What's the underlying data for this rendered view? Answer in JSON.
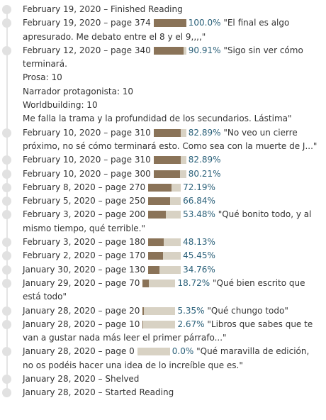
{
  "colors": {
    "bar_fill": "#8a7358",
    "bar_track": "#d8d2c4",
    "percent_text": "#2a6079",
    "timeline": "#e1e1e1"
  },
  "entries": [
    {
      "kind": "status",
      "text": "February 19, 2020 – Finished Reading"
    },
    {
      "kind": "progress",
      "date": "February 19, 2020",
      "page": "page 374",
      "percent": "100.0%",
      "value": 100.0,
      "quote": "\"El final es algo apresurado. Me debato entre el 8 y el 9,,,,\""
    },
    {
      "kind": "progress",
      "date": "February 12, 2020",
      "page": "page 340",
      "percent": "90.91%",
      "value": 90.91,
      "quote": "\"Sigo sin ver cómo terminará."
    },
    {
      "kind": "note",
      "text": "Prosa: 10"
    },
    {
      "kind": "note",
      "text": "Narrador protagonista: 10"
    },
    {
      "kind": "note",
      "text": "Worldbuilding: 10"
    },
    {
      "kind": "note",
      "text": "Me falla la trama y la profundidad de los secundarios. Lástima\""
    },
    {
      "kind": "progress",
      "date": "February 10, 2020",
      "page": "page 310",
      "percent": "82.89%",
      "value": 82.89,
      "quote": "\"No veo un cierre próximo, no sé cómo terminará esto. Como sea con la muerte de J...\""
    },
    {
      "kind": "progress",
      "date": "February 10, 2020",
      "page": "page 310",
      "percent": "82.89%",
      "value": 82.89,
      "quote": ""
    },
    {
      "kind": "progress",
      "date": "February 10, 2020",
      "page": "page 300",
      "percent": "80.21%",
      "value": 80.21,
      "quote": ""
    },
    {
      "kind": "progress",
      "date": "February 8, 2020",
      "page": "page 270",
      "percent": "72.19%",
      "value": 72.19,
      "quote": ""
    },
    {
      "kind": "progress",
      "date": "February 5, 2020",
      "page": "page 250",
      "percent": "66.84%",
      "value": 66.84,
      "quote": ""
    },
    {
      "kind": "progress",
      "date": "February 3, 2020",
      "page": "page 200",
      "percent": "53.48%",
      "value": 53.48,
      "quote": "\"Qué bonito todo, y al mismo tiempo, qué terrible.\""
    },
    {
      "kind": "progress",
      "date": "February 3, 2020",
      "page": "page 180",
      "percent": "48.13%",
      "value": 48.13,
      "quote": ""
    },
    {
      "kind": "progress",
      "date": "February 2, 2020",
      "page": "page 170",
      "percent": "45.45%",
      "value": 45.45,
      "quote": ""
    },
    {
      "kind": "progress",
      "date": "January 30, 2020",
      "page": "page 130",
      "percent": "34.76%",
      "value": 34.76,
      "quote": ""
    },
    {
      "kind": "progress",
      "date": "January 29, 2020",
      "page": "page 70",
      "percent": "18.72%",
      "value": 18.72,
      "quote": "\"Qué bien escrito que está todo\""
    },
    {
      "kind": "progress",
      "date": "January 28, 2020",
      "page": "page 20",
      "percent": "5.35%",
      "value": 5.35,
      "quote": "\"Qué chungo todo\""
    },
    {
      "kind": "progress",
      "date": "January 28, 2020",
      "page": "page 10",
      "percent": "2.67%",
      "value": 2.67,
      "quote": "\"Libros que sabes que te van a gustar nada más leer el primer párrafo...\""
    },
    {
      "kind": "progress",
      "date": "January 28, 2020",
      "page": "page 0",
      "percent": "0.0%",
      "value": 0.0,
      "quote": "\"Qué maravilla de edición, no os podéis hacer una idea de lo increíble que es.\""
    },
    {
      "kind": "status",
      "text": "January 28, 2020 – Shelved"
    },
    {
      "kind": "status",
      "text": "January 28, 2020 – Started Reading"
    }
  ]
}
